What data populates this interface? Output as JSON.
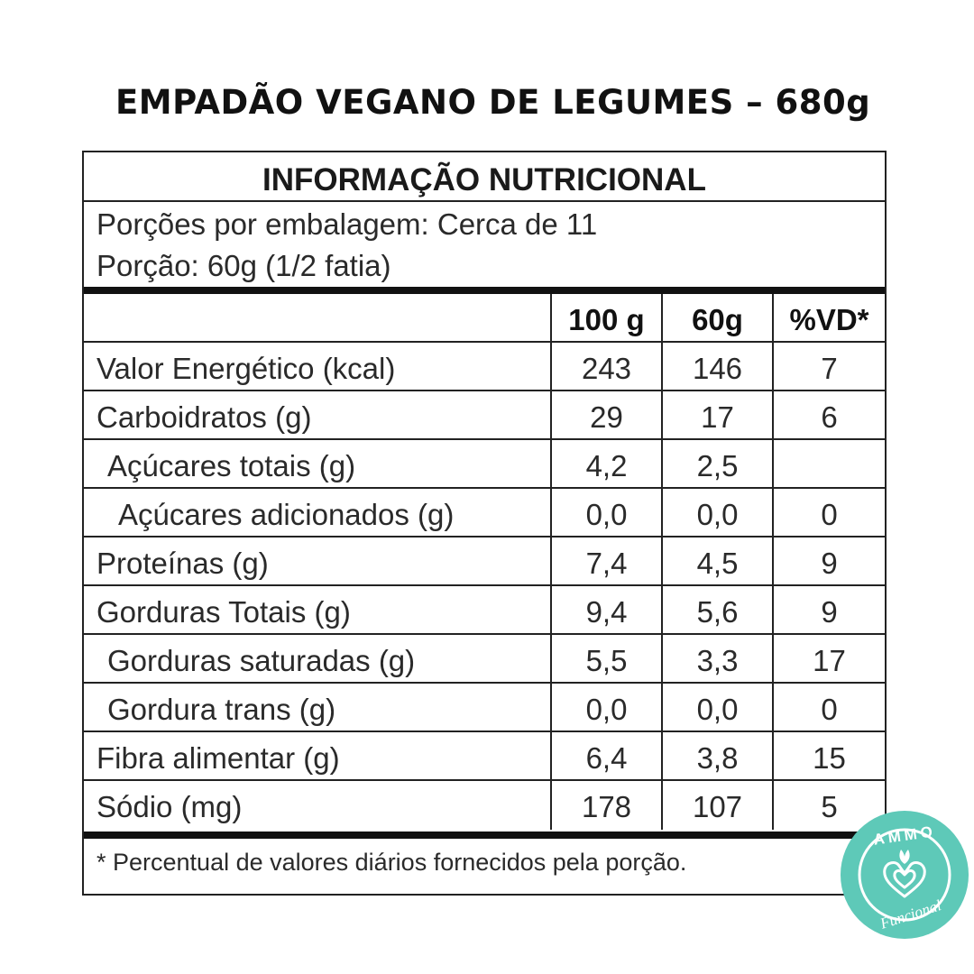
{
  "product_title": "EMPADÃO VEGANO DE LEGUMES – 680g",
  "panel": {
    "heading": "INFORMAÇÃO NUTRICIONAL",
    "portions_line": "Porções por embalagem: Cerca de 11",
    "serving_line": "Porção: 60g (1/2 fatia)",
    "columns": [
      "",
      "100 g",
      "60g",
      "%VD*"
    ],
    "rows": [
      {
        "label": "Valor Energético (kcal)",
        "per100": "243",
        "per60": "146",
        "vd": "7"
      },
      {
        "label": "Carboidratos (g)",
        "per100": "29",
        "per60": "17",
        "vd": "6"
      },
      {
        "label": "Açúcares totais (g)",
        "per100": "4,2",
        "per60": "2,5",
        "vd": ""
      },
      {
        "label": "Açúcares adicionados (g)",
        "per100": "0,0",
        "per60": "0,0",
        "vd": "0"
      },
      {
        "label": "Proteínas (g)",
        "per100": "7,4",
        "per60": "4,5",
        "vd": "9"
      },
      {
        "label": "Gorduras Totais (g)",
        "per100": "9,4",
        "per60": "5,6",
        "vd": "9"
      },
      {
        "label": "Gorduras saturadas (g)",
        "per100": "5,5",
        "per60": "3,3",
        "vd": "17"
      },
      {
        "label": "Gordura trans (g)",
        "per100": "0,0",
        "per60": "0,0",
        "vd": "0"
      },
      {
        "label": "Fibra alimentar (g)",
        "per100": "6,4",
        "per60": "3,8",
        "vd": "15"
      },
      {
        "label": "Sódio (mg)",
        "per100": "178",
        "per60": "107",
        "vd": "5"
      }
    ],
    "footnote": "* Percentual de valores diários fornecidos pela porção."
  },
  "badge": {
    "logo_text": "AMMO",
    "logo_script": "Funcional",
    "bg_color": "#5ec9b8",
    "ring_color": "#ffffff"
  }
}
